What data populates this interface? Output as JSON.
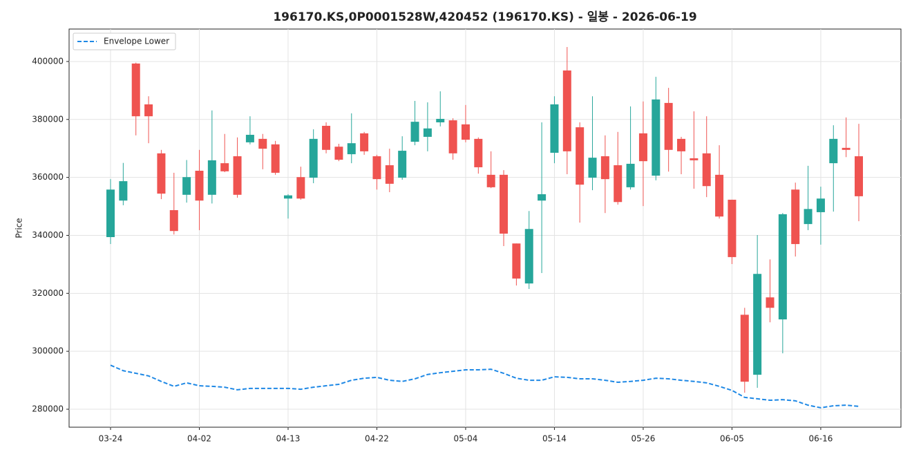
{
  "chart_data": {
    "type": "candlestick",
    "title": "196170.KS,0P0001528W,420452 (196170.KS) - 일봉 - 2026-06-19",
    "ylabel": "Price",
    "categories": [
      "03-24",
      null,
      null,
      null,
      null,
      null,
      null,
      "04-02",
      null,
      null,
      null,
      null,
      null,
      null,
      "04-13",
      null,
      null,
      null,
      null,
      null,
      null,
      "04-22",
      null,
      null,
      null,
      null,
      null,
      null,
      "05-04",
      null,
      null,
      null,
      null,
      null,
      null,
      "05-14",
      null,
      null,
      null,
      null,
      null,
      null,
      "05-26",
      null,
      null,
      null,
      null,
      null,
      null,
      "06-05",
      null,
      null,
      null,
      null,
      null,
      null,
      "06-16",
      null,
      null,
      null
    ],
    "open": [
      339400,
      352000,
      399300,
      385200,
      368300,
      348700,
      354000,
      362300,
      354000,
      364900,
      367300,
      372100,
      373300,
      371400,
      352700,
      360100,
      359900,
      377800,
      370600,
      368000,
      375200,
      367300,
      364200,
      359900,
      372300,
      374000,
      379000,
      379700,
      378300,
      373300,
      360900,
      360900,
      337200,
      323400,
      352000,
      368500,
      396900,
      377300,
      359900,
      367300,
      364200,
      356600,
      375200,
      360600,
      385700,
      373300,
      366600,
      368300,
      360900,
      352300,
      312600,
      291900,
      318600,
      311000,
      355800,
      343900,
      348000,
      364900,
      370200,
      367300
    ],
    "high": [
      359400,
      365000,
      399600,
      388000,
      369500,
      361600,
      366000,
      369500,
      383100,
      375000,
      373800,
      381100,
      375000,
      372600,
      354200,
      363700,
      376600,
      379000,
      371600,
      382100,
      375700,
      367800,
      369900,
      374200,
      386400,
      385900,
      389700,
      380400,
      385000,
      373800,
      369000,
      362500,
      337200,
      348400,
      379000,
      388000,
      405000,
      379000,
      388000,
      374500,
      375700,
      384500,
      386200,
      394700,
      390900,
      374000,
      382800,
      381100,
      371100,
      352300,
      315000,
      340100,
      331700,
      347700,
      358200,
      364000,
      356800,
      378000,
      380700,
      378500
    ],
    "low": [
      337000,
      350400,
      374500,
      371800,
      352500,
      340300,
      351300,
      341800,
      351000,
      361800,
      353000,
      371400,
      362800,
      360900,
      345800,
      352300,
      358000,
      368300,
      365600,
      364900,
      367800,
      355800,
      354900,
      359200,
      371100,
      369000,
      377600,
      366100,
      372100,
      361300,
      356300,
      336300,
      322700,
      321500,
      327000,
      364900,
      361100,
      344400,
      355600,
      347700,
      350600,
      355800,
      350100,
      359000,
      362000,
      361100,
      356100,
      353200,
      345800,
      330100,
      285700,
      287400,
      310000,
      299300,
      332700,
      341800,
      336800,
      348200,
      367000,
      344900
    ],
    "close": [
      355800,
      358700,
      381100,
      381100,
      354400,
      341500,
      360100,
      352000,
      365900,
      362100,
      354000,
      374700,
      369900,
      361600,
      353800,
      352700,
      373300,
      369500,
      366100,
      371800,
      369000,
      359400,
      357800,
      369200,
      379200,
      376900,
      380200,
      368300,
      373000,
      363500,
      356600,
      340600,
      325100,
      342200,
      354200,
      385200,
      369000,
      357500,
      366800,
      359400,
      351500,
      364700,
      365600,
      386900,
      369500,
      369000,
      365900,
      357000,
      346500,
      332500,
      289500,
      326700,
      315000,
      347300,
      337000,
      349100,
      352700,
      373300,
      369500,
      353500
    ],
    "up_color": "#26a69a",
    "down_color": "#ef5350",
    "series": [
      {
        "name": "Envelope Lower",
        "color": "#1e88e5",
        "dashed": true,
        "values": [
          295200,
          293300,
          292400,
          291500,
          289600,
          287900,
          289100,
          288100,
          287900,
          287600,
          286700,
          287200,
          287200,
          287200,
          287200,
          286900,
          287600,
          288100,
          288600,
          290000,
          290700,
          291000,
          290000,
          289600,
          290500,
          292000,
          292600,
          293100,
          293600,
          293600,
          293800,
          292400,
          290700,
          290000,
          290000,
          291200,
          291000,
          290500,
          290500,
          290000,
          289300,
          289600,
          290000,
          290700,
          290500,
          290000,
          289600,
          289100,
          287900,
          286500,
          284100,
          283600,
          283100,
          283300,
          282900,
          281400,
          280500,
          281200,
          281400,
          281000
        ]
      }
    ],
    "ylim": [
      273800,
      411200
    ],
    "yticks": [
      280000,
      300000,
      320000,
      340000,
      360000,
      380000,
      400000
    ],
    "grid": true,
    "legend": "upper left"
  }
}
